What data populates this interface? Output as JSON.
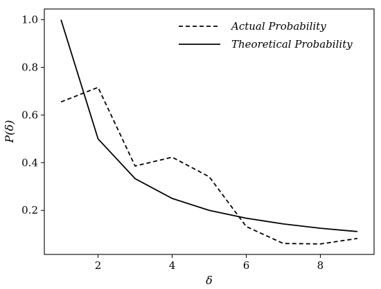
{
  "chart_data": {
    "type": "line",
    "xlabel": "δ",
    "ylabel": "P(δ)",
    "xlim": [
      0.55,
      9.45
    ],
    "ylim": [
      0.015,
      1.045
    ],
    "xticks": [
      2,
      4,
      6,
      8
    ],
    "yticks": [
      0.2,
      0.4,
      0.6,
      0.8,
      1.0
    ],
    "xtick_labels": [
      "2",
      "4",
      "6",
      "8"
    ],
    "ytick_labels": [
      "0.2",
      "0.4",
      "0.6",
      "0.8",
      "1.0"
    ],
    "grid": false,
    "legend_position": "top-right",
    "x": [
      1,
      2,
      3,
      4,
      5,
      6,
      7,
      8,
      9
    ],
    "series": [
      {
        "name": "Actual Probability",
        "style": "dashed",
        "color": "#000000",
        "values": [
          0.655,
          0.716,
          0.386,
          0.423,
          0.341,
          0.132,
          0.061,
          0.059,
          0.082
        ]
      },
      {
        "name": "Theoretical Probability",
        "style": "solid",
        "color": "#000000",
        "values": [
          1.0,
          0.5,
          0.333,
          0.25,
          0.2,
          0.167,
          0.143,
          0.125,
          0.111
        ]
      }
    ]
  }
}
